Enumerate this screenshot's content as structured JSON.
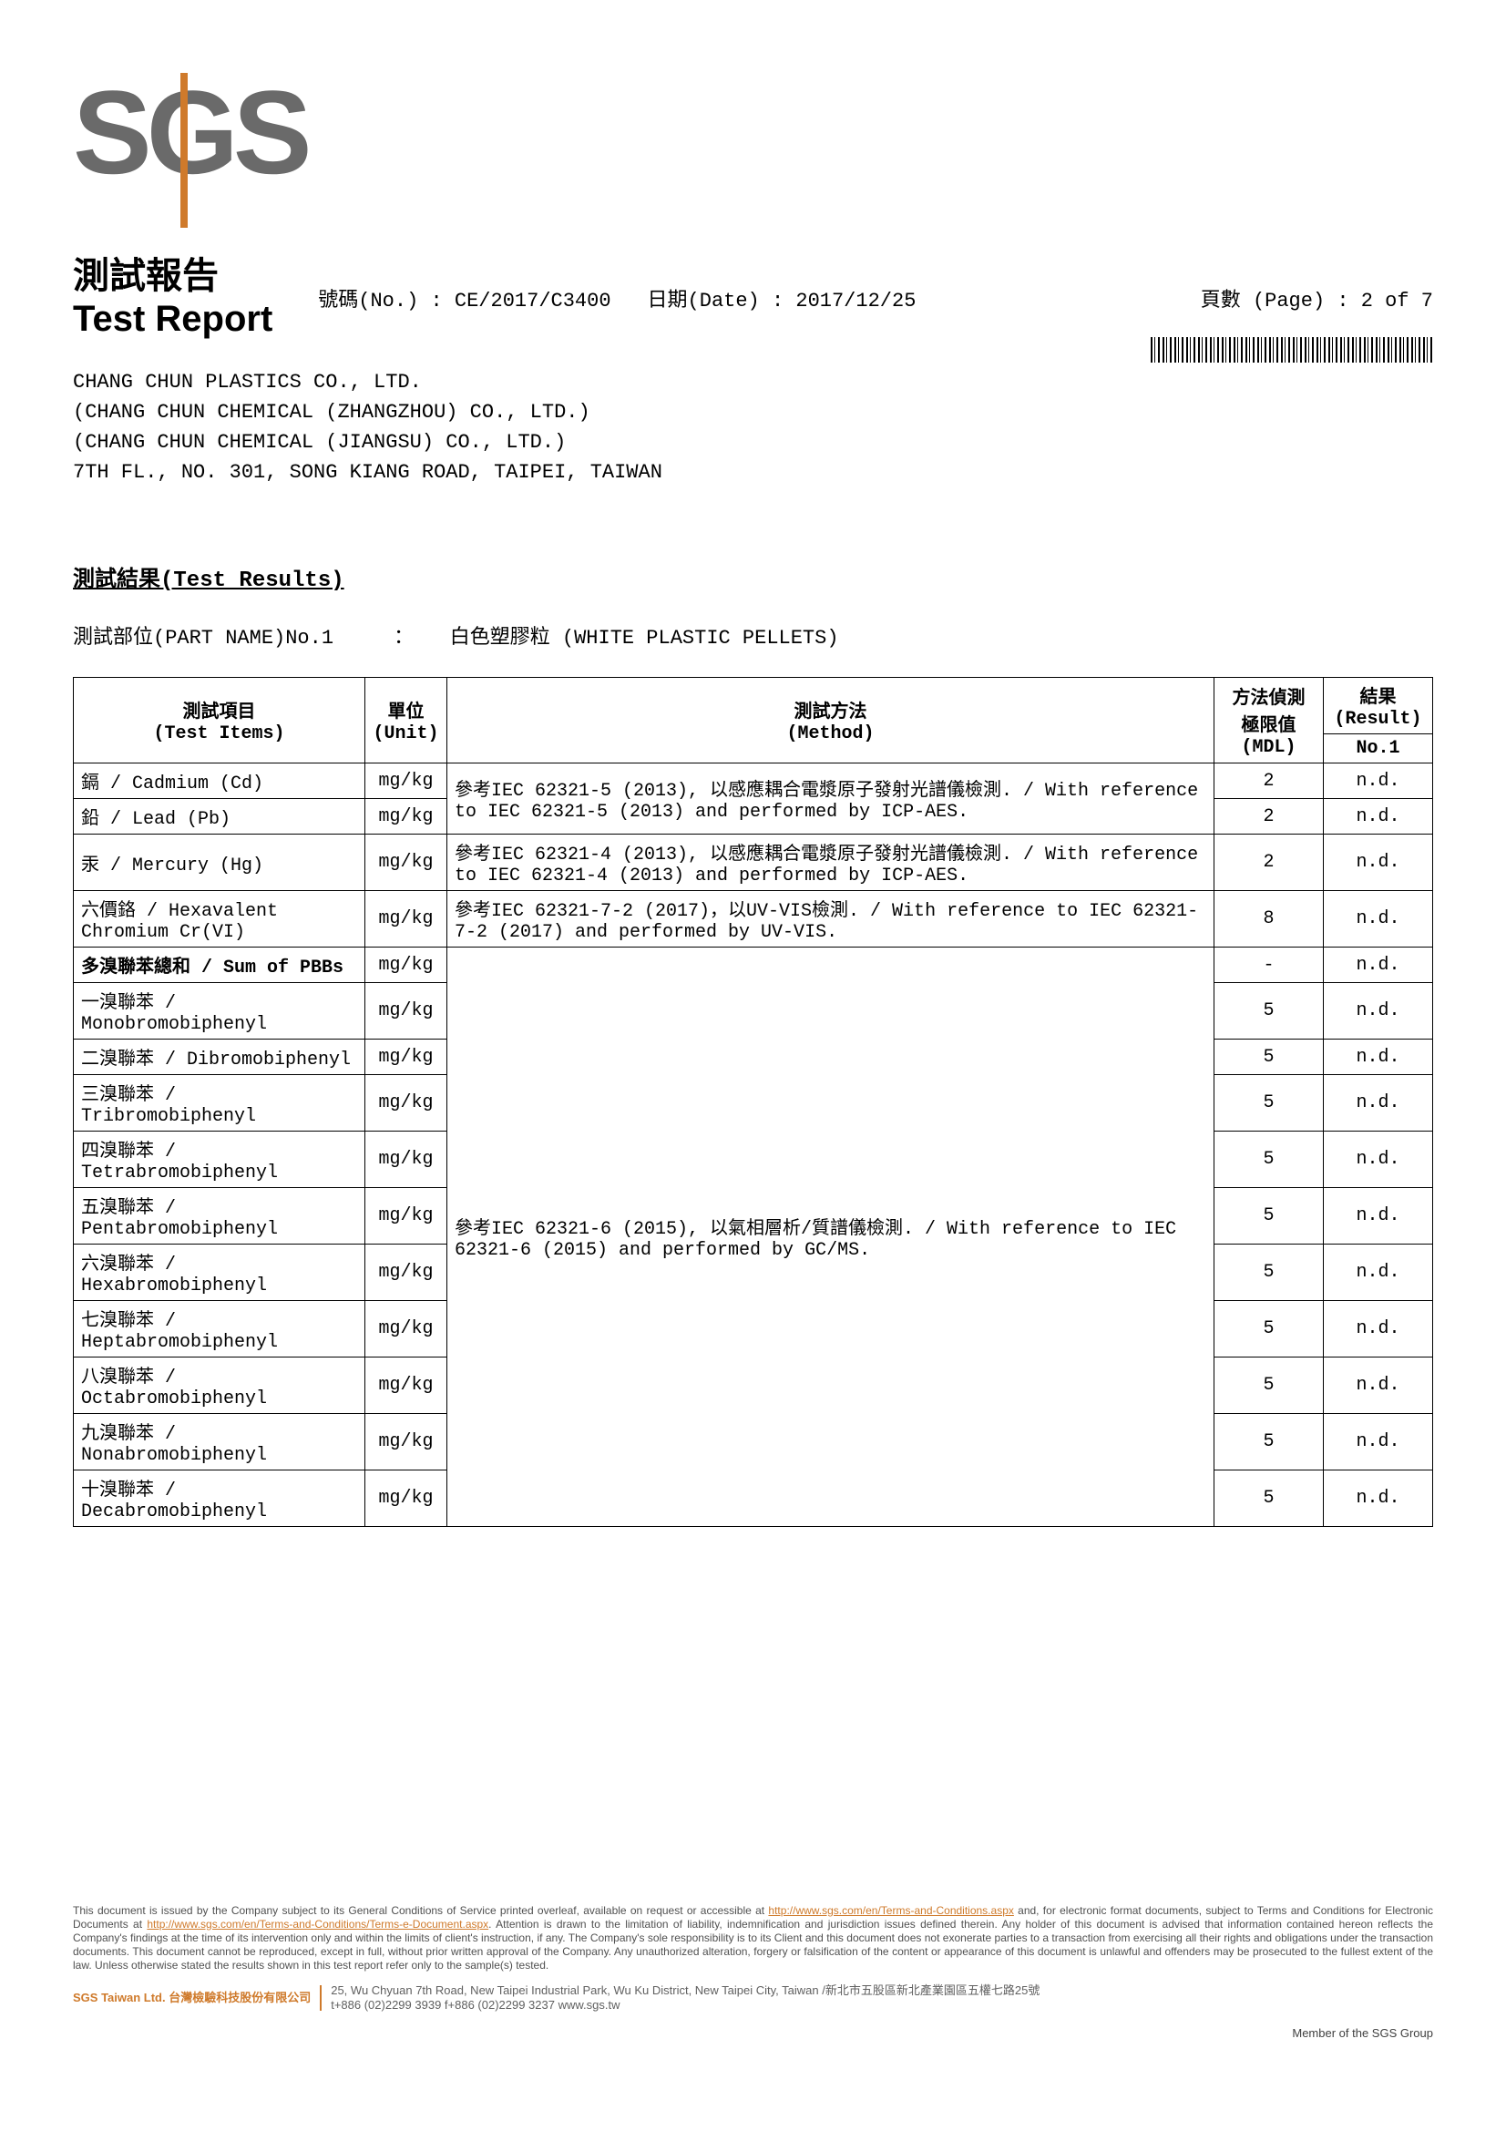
{
  "logo_text": "SGS",
  "title_cn": "測試報告",
  "title_en": "Test Report",
  "report_no_label": "號碼(No.) : ",
  "report_no": "CE/2017/C3400",
  "date_label": "日期(Date) : ",
  "date": "2017/12/25",
  "page_label": "頁數 (Page) : ",
  "page": "2 of 7",
  "company": {
    "line1": "CHANG CHUN PLASTICS CO., LTD.",
    "line2": "(CHANG CHUN CHEMICAL (ZHANGZHOU) CO., LTD.)",
    "line3": "(CHANG CHUN CHEMICAL (JIANGSU) CO., LTD.)",
    "line4": "7TH FL., NO. 301, SONG KIANG ROAD, TAIPEI, TAIWAN"
  },
  "results_heading": "測試結果(Test Results)",
  "part_name_label": "測試部位(PART NAME)No.1",
  "part_name_sep": "：",
  "part_name_value": "白色塑膠粒 (WHITE PLASTIC PELLETS)",
  "table": {
    "headers": {
      "item": "測試項目\n(Test Items)",
      "unit": "單位\n(Unit)",
      "method": "測試方法\n(Method)",
      "mdl": "方法偵測\n極限值\n(MDL)",
      "result": "結果\n(Result)",
      "result_sub": "No.1"
    },
    "method_icpaes_cd_pb": "參考IEC 62321-5 (2013), 以感應耦合電漿原子發射光譜儀檢測. / With reference to IEC 62321-5 (2013) and performed by ICP-AES.",
    "method_icpaes_hg": "參考IEC 62321-4 (2013), 以感應耦合電漿原子發射光譜儀檢測. / With reference to IEC 62321-4 (2013) and performed by ICP-AES.",
    "method_uvvis": "參考IEC 62321-7-2 (2017)，以UV-VIS檢測. / With reference to IEC 62321-7-2 (2017) and performed by UV-VIS.",
    "method_gcms": "參考IEC 62321-6 (2015), 以氣相層析/質譜儀檢測. / With reference to IEC 62321-6 (2015) and performed by GC/MS.",
    "rows": [
      {
        "item": "鎘 / Cadmium (Cd)",
        "unit": "mg/kg",
        "method_ref": "icpaes_cd_pb",
        "mdl": "2",
        "result": "n.d."
      },
      {
        "item": "鉛 / Lead (Pb)",
        "unit": "mg/kg",
        "method_ref": "icpaes_cd_pb",
        "mdl": "2",
        "result": "n.d."
      },
      {
        "item": "汞 / Mercury (Hg)",
        "unit": "mg/kg",
        "method_ref": "icpaes_hg",
        "mdl": "2",
        "result": "n.d."
      },
      {
        "item": "六價鉻 / Hexavalent Chromium Cr(VI)",
        "unit": "mg/kg",
        "method_ref": "uvvis",
        "mdl": "8",
        "result": "n.d."
      },
      {
        "item": "多溴聯苯總和 / Sum of PBBs",
        "unit": "mg/kg",
        "method_ref": "gcms",
        "mdl": "-",
        "result": "n.d.",
        "bold": true
      },
      {
        "item": "一溴聯苯 / Monobromobiphenyl",
        "unit": "mg/kg",
        "method_ref": "gcms",
        "mdl": "5",
        "result": "n.d."
      },
      {
        "item": "二溴聯苯 / Dibromobiphenyl",
        "unit": "mg/kg",
        "method_ref": "gcms",
        "mdl": "5",
        "result": "n.d."
      },
      {
        "item": "三溴聯苯 / Tribromobiphenyl",
        "unit": "mg/kg",
        "method_ref": "gcms",
        "mdl": "5",
        "result": "n.d."
      },
      {
        "item": "四溴聯苯 / Tetrabromobiphenyl",
        "unit": "mg/kg",
        "method_ref": "gcms",
        "mdl": "5",
        "result": "n.d."
      },
      {
        "item": "五溴聯苯 / Pentabromobiphenyl",
        "unit": "mg/kg",
        "method_ref": "gcms",
        "mdl": "5",
        "result": "n.d."
      },
      {
        "item": "六溴聯苯 / Hexabromobiphenyl",
        "unit": "mg/kg",
        "method_ref": "gcms",
        "mdl": "5",
        "result": "n.d."
      },
      {
        "item": "七溴聯苯 / Heptabromobiphenyl",
        "unit": "mg/kg",
        "method_ref": "gcms",
        "mdl": "5",
        "result": "n.d."
      },
      {
        "item": "八溴聯苯 / Octabromobiphenyl",
        "unit": "mg/kg",
        "method_ref": "gcms",
        "mdl": "5",
        "result": "n.d."
      },
      {
        "item": "九溴聯苯 / Nonabromobiphenyl",
        "unit": "mg/kg",
        "method_ref": "gcms",
        "mdl": "5",
        "result": "n.d."
      },
      {
        "item": "十溴聯苯 / Decabromobiphenyl",
        "unit": "mg/kg",
        "method_ref": "gcms",
        "mdl": "5",
        "result": "n.d."
      }
    ]
  },
  "footer": {
    "disclaimer_1": "This document is issued by the Company subject to its General Conditions of Service printed overleaf, available on request or accessible at ",
    "link1": "http://www.sgs.com/en/Terms-and-Conditions.aspx",
    "disclaimer_2": " and, for electronic format documents, subject to Terms and Conditions for Electronic Documents at ",
    "link2": "http://www.sgs.com/en/Terms-and-Conditions/Terms-e-Document.aspx",
    "disclaimer_3": ". Attention is drawn to the limitation of liability, indemnification and jurisdiction issues defined therein. Any holder of this document is advised that information contained hereon reflects the Company's findings at the time of its intervention only and within the limits of client's instruction, if any. The Company's sole responsibility is to its Client and this document does not exonerate parties to a transaction from exercising all their rights and obligations under the transaction documents. This document cannot be reproduced, except in full, without prior written approval of the Company. Any unauthorized alteration, forgery or falsification of the content or appearance of this document is unlawful and offenders may be prosecuted to the fullest extent of the law. Unless otherwise stated the results shown in this test report refer only to the sample(s) tested.",
    "company_label": "SGS Taiwan Ltd. 台灣檢驗科技股份有限公司",
    "address": "25, Wu Chyuan 7th Road, New Taipei Industrial Park, Wu Ku District, New Taipei City, Taiwan /新北市五股區新北產業園區五權七路25號",
    "contact": "t+886 (02)2299 3939   f+886 (02)2299 3237   www.sgs.tw",
    "member": "Member of the SGS Group"
  }
}
